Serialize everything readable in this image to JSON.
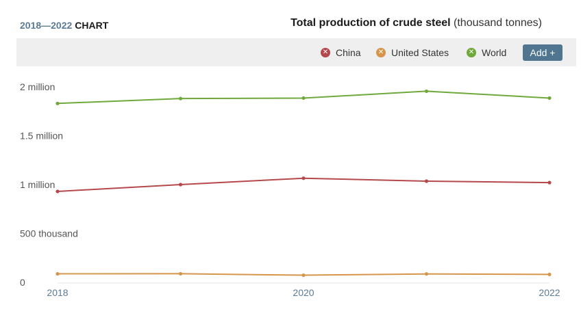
{
  "header": {
    "range_years": "2018—2022",
    "range_word": "CHART",
    "title_main": "Total production of crude steel",
    "title_unit": "(thousand tonnes)"
  },
  "legend": {
    "items": [
      {
        "label": "China",
        "color": "#b5484b",
        "icon": "close-icon"
      },
      {
        "label": "United States",
        "color": "#d5954a",
        "icon": "close-icon"
      },
      {
        "label": "World",
        "color": "#6fa83b",
        "icon": "close-icon"
      }
    ],
    "add_label": "Add +"
  },
  "chart_data": {
    "type": "line",
    "title": "Total production of crude steel",
    "ylabel": "(thousand tonnes)",
    "x": [
      2018,
      2019,
      2020,
      2021,
      2022
    ],
    "x_tick_labels": [
      "2018",
      "2020",
      "2022"
    ],
    "ylim": [
      0,
      2000000
    ],
    "y_ticks": [
      {
        "value": 0,
        "label": "0"
      },
      {
        "value": 500000,
        "label": "500 thousand"
      },
      {
        "value": 1000000,
        "label": "1 million"
      },
      {
        "value": 1500000,
        "label": "1.5 million"
      },
      {
        "value": 2000000,
        "label": "2 million"
      }
    ],
    "series": [
      {
        "name": "World",
        "color": "#6fa83b",
        "values": [
          1830000,
          1880000,
          1885000,
          1955000,
          1885000
        ]
      },
      {
        "name": "China",
        "color": "#b5484b",
        "values": [
          930000,
          1000000,
          1065000,
          1035000,
          1020000
        ]
      },
      {
        "name": "United States",
        "color": "#d5954a",
        "values": [
          87000,
          88000,
          73000,
          86000,
          81000
        ]
      }
    ],
    "grid": false,
    "legend_position": "top-right"
  }
}
